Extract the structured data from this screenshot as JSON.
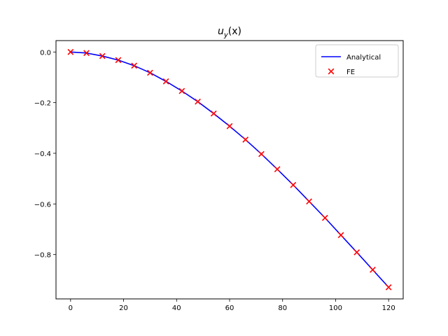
{
  "chart_data": {
    "type": "line",
    "title": {
      "base": "u",
      "sub": "y",
      "arg": "(x)"
    },
    "xlabel": "",
    "ylabel": "",
    "xlim": [
      -5.5,
      125.5
    ],
    "ylim": [
      -0.975,
      0.045
    ],
    "xticks": [
      0,
      20,
      40,
      60,
      80,
      100,
      120
    ],
    "yticks": [
      0.0,
      -0.2,
      -0.4,
      -0.6,
      -0.8
    ],
    "ytick_labels": [
      "0.0",
      "−0.2",
      "−0.4",
      "−0.6",
      "−0.8"
    ],
    "grid": false,
    "legend": {
      "placement": "top-right"
    },
    "series": [
      {
        "name": "Analytical",
        "kind": "line",
        "color": "#0000ff",
        "x": [
          0,
          6,
          12,
          18,
          24,
          30,
          36,
          42,
          48,
          54,
          60,
          66,
          72,
          78,
          84,
          90,
          96,
          102,
          108,
          114,
          120
        ],
        "y": [
          0.0,
          -0.004,
          -0.016,
          -0.032,
          -0.054,
          -0.082,
          -0.116,
          -0.154,
          -0.196,
          -0.243,
          -0.293,
          -0.346,
          -0.403,
          -0.463,
          -0.525,
          -0.59,
          -0.655,
          -0.723,
          -0.791,
          -0.86,
          -0.929
        ]
      },
      {
        "name": "FE",
        "kind": "scatter",
        "marker": "x",
        "color": "#ff0000",
        "x": [
          0,
          6,
          12,
          18,
          24,
          30,
          36,
          42,
          48,
          54,
          60,
          66,
          72,
          78,
          84,
          90,
          96,
          102,
          108,
          114,
          120
        ],
        "y": [
          0.0,
          -0.004,
          -0.016,
          -0.032,
          -0.054,
          -0.082,
          -0.116,
          -0.154,
          -0.196,
          -0.243,
          -0.293,
          -0.346,
          -0.403,
          -0.463,
          -0.525,
          -0.59,
          -0.655,
          -0.723,
          -0.791,
          -0.86,
          -0.929
        ]
      }
    ]
  }
}
